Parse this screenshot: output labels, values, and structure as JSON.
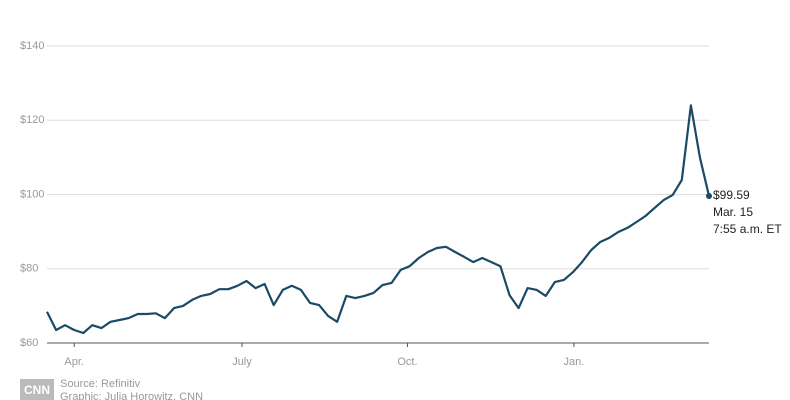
{
  "chart_data": {
    "type": "line",
    "values": [
      68.4,
      63.5,
      64.8,
      63.5,
      62.7,
      64.8,
      64,
      65.7,
      66.2,
      66.7,
      67.8,
      67.8,
      68,
      66.7,
      69.4,
      70,
      71.6,
      72.7,
      73.2,
      74.5,
      74.5,
      75.4,
      76.7,
      74.8,
      75.9,
      70.2,
      74.3,
      75.4,
      74.3,
      70.8,
      70.2,
      67.3,
      65.7,
      72.7,
      72.1,
      72.7,
      73.5,
      75.6,
      76.2,
      79.7,
      80.7,
      82.9,
      84.5,
      85.6,
      85.9,
      84.5,
      83.2,
      81.8,
      82.9,
      81.8,
      80.7,
      72.9,
      69.4,
      74.8,
      74.3,
      72.7,
      76.4,
      77,
      79.1,
      81.8,
      85,
      87.2,
      88.3,
      89.9,
      91,
      92.6,
      94.2,
      96.4,
      98.5,
      99.9,
      103.9,
      124,
      110,
      99.59
    ],
    "color": "#1a4a66",
    "ylim": [
      60,
      140
    ],
    "yticks": [
      {
        "value": 60,
        "label": "$60"
      },
      {
        "value": 80,
        "label": "$80"
      },
      {
        "value": 100,
        "label": "$100"
      },
      {
        "value": 120,
        "label": "$120"
      },
      {
        "value": 140,
        "label": "$140"
      }
    ],
    "xticks": [
      {
        "value": 3,
        "label": "Apr."
      },
      {
        "value": 21.5,
        "label": "July"
      },
      {
        "value": 39.75,
        "label": "Oct."
      },
      {
        "value": 58.1,
        "label": "Jan."
      }
    ],
    "grid": true,
    "annotation": [
      "$99.59",
      "Mar. 15",
      "7:55 a.m. ET"
    ],
    "source": "Source: Refinitiv",
    "credit": "Graphic: Julia Horowitz, CNN",
    "logo": "CNN"
  }
}
